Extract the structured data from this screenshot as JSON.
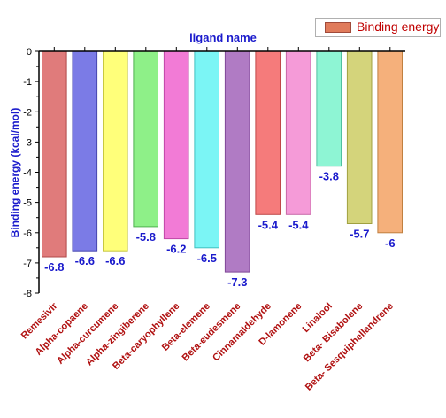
{
  "chart_data": {
    "type": "bar",
    "title": "ligand name",
    "xlabel": "",
    "ylabel": "Binding energy (kcal/mol)",
    "ylim": [
      -8,
      0
    ],
    "yticks": [
      0,
      -1,
      -2,
      -3,
      -4,
      -5,
      -6,
      -7,
      -8
    ],
    "x_axis_position": "top",
    "legend_position": "top-right",
    "grid": false,
    "categories": [
      "Remesivir",
      "Alpha-copaene",
      "Alpha-curcumene",
      "Alpha-zingiberene",
      "Beta-caryophyllene",
      "Beta-elemene",
      "Beta-eudesmene",
      "Cinnamaldehyde",
      "D-lamonene",
      "Linalool",
      "Beta- Bisabolene",
      "Beta- Sesquiphellandrene"
    ],
    "series": [
      {
        "name": "Binding energy",
        "values": [
          -6.8,
          -6.6,
          -6.6,
          -5.8,
          -6.2,
          -6.5,
          -7.3,
          -5.4,
          -5.4,
          -3.8,
          -5.7,
          -6
        ],
        "labels": [
          "-6.8",
          "-6.6",
          "-6.6",
          "-5.8",
          "-6.2",
          "-6.5",
          "-7.3",
          "-5.4",
          "-5.4",
          "-3.8",
          "-5.7",
          "-6"
        ]
      }
    ],
    "colors": {
      "bars": [
        "#e07b7b",
        "#7b7be6",
        "#ffff7a",
        "#8ef088",
        "#f27bd6",
        "#7bf5f5",
        "#b07bc4",
        "#f57b7b",
        "#f59bd8",
        "#8ef5d4",
        "#d4d47b",
        "#f5b07b"
      ],
      "bar_edges": [
        "#b04848",
        "#4848b0",
        "#c8c840",
        "#50b050",
        "#c048a8",
        "#40c0c0",
        "#804898",
        "#c04848",
        "#c868a8",
        "#50c0a0",
        "#a0a040",
        "#c08040"
      ],
      "legend_swatch": "#e07b5b",
      "axis": "#000000",
      "title": "#1a1acc",
      "ylabel": "#1a1acc",
      "value_labels": "#1a1acc",
      "category_labels": "#b01010",
      "legend_text": "#c00000"
    }
  }
}
